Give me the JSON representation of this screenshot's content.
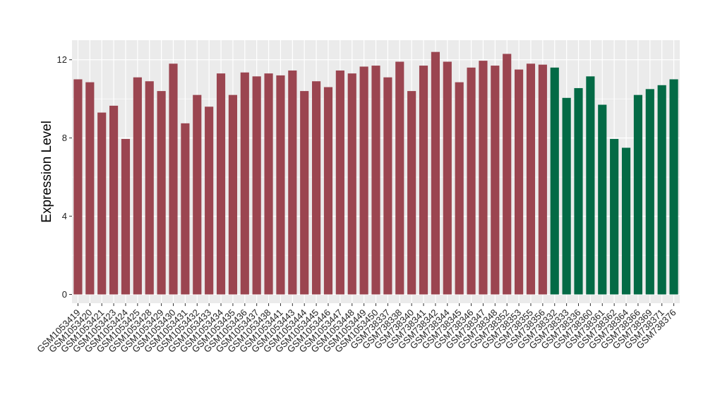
{
  "chart_data": {
    "type": "bar",
    "title": "",
    "xlabel": "",
    "ylabel": "Expression Level",
    "ylim": [
      -0.45,
      13
    ],
    "yticks": [
      0,
      4,
      8,
      12
    ],
    "grid": true,
    "legend": "none",
    "colors": {
      "group1": "#9b4550",
      "group2": "#036a45",
      "panel": "#ebebeb",
      "grid": "#ffffff"
    },
    "categories": [
      "GSM1053419",
      "GSM1053420",
      "GSM1053421",
      "GSM1053423",
      "GSM1053424",
      "GSM1053425",
      "GSM1053428",
      "GSM1053429",
      "GSM1053430",
      "GSM1053431",
      "GSM1053432",
      "GSM1053433",
      "GSM1053434",
      "GSM1053435",
      "GSM1053436",
      "GSM1053437",
      "GSM1053438",
      "GSM1053441",
      "GSM1053443",
      "GSM1053444",
      "GSM1053445",
      "GSM1053446",
      "GSM1053447",
      "GSM1053448",
      "GSM1053449",
      "GSM1053450",
      "GSM738337",
      "GSM738338",
      "GSM738340",
      "GSM738341",
      "GSM738342",
      "GSM738344",
      "GSM738345",
      "GSM738346",
      "GSM738347",
      "GSM738348",
      "GSM738352",
      "GSM738353",
      "GSM738355",
      "GSM738356",
      "GSM738332",
      "GSM738333",
      "GSM738336",
      "GSM738360",
      "GSM738361",
      "GSM738362",
      "GSM738364",
      "GSM738366",
      "GSM738369",
      "GSM738371",
      "GSM738376"
    ],
    "values": [
      11.0,
      10.85,
      9.3,
      9.65,
      7.95,
      11.1,
      10.9,
      10.4,
      11.8,
      8.75,
      10.2,
      9.6,
      11.3,
      10.2,
      11.35,
      11.15,
      11.3,
      11.2,
      11.45,
      10.4,
      10.9,
      10.6,
      11.45,
      11.3,
      11.65,
      11.7,
      11.1,
      11.9,
      10.4,
      11.7,
      12.4,
      11.9,
      10.85,
      11.6,
      11.95,
      11.7,
      12.3,
      11.5,
      11.8,
      11.75,
      11.6,
      10.05,
      10.55,
      11.15,
      9.7,
      7.95,
      7.5,
      10.2,
      10.5,
      10.7,
      11.0
    ],
    "groups": [
      1,
      1,
      1,
      1,
      1,
      1,
      1,
      1,
      1,
      1,
      1,
      1,
      1,
      1,
      1,
      1,
      1,
      1,
      1,
      1,
      1,
      1,
      1,
      1,
      1,
      1,
      1,
      1,
      1,
      1,
      1,
      1,
      1,
      1,
      1,
      1,
      1,
      1,
      1,
      1,
      2,
      2,
      2,
      2,
      2,
      2,
      2,
      2,
      2,
      2,
      2
    ]
  }
}
